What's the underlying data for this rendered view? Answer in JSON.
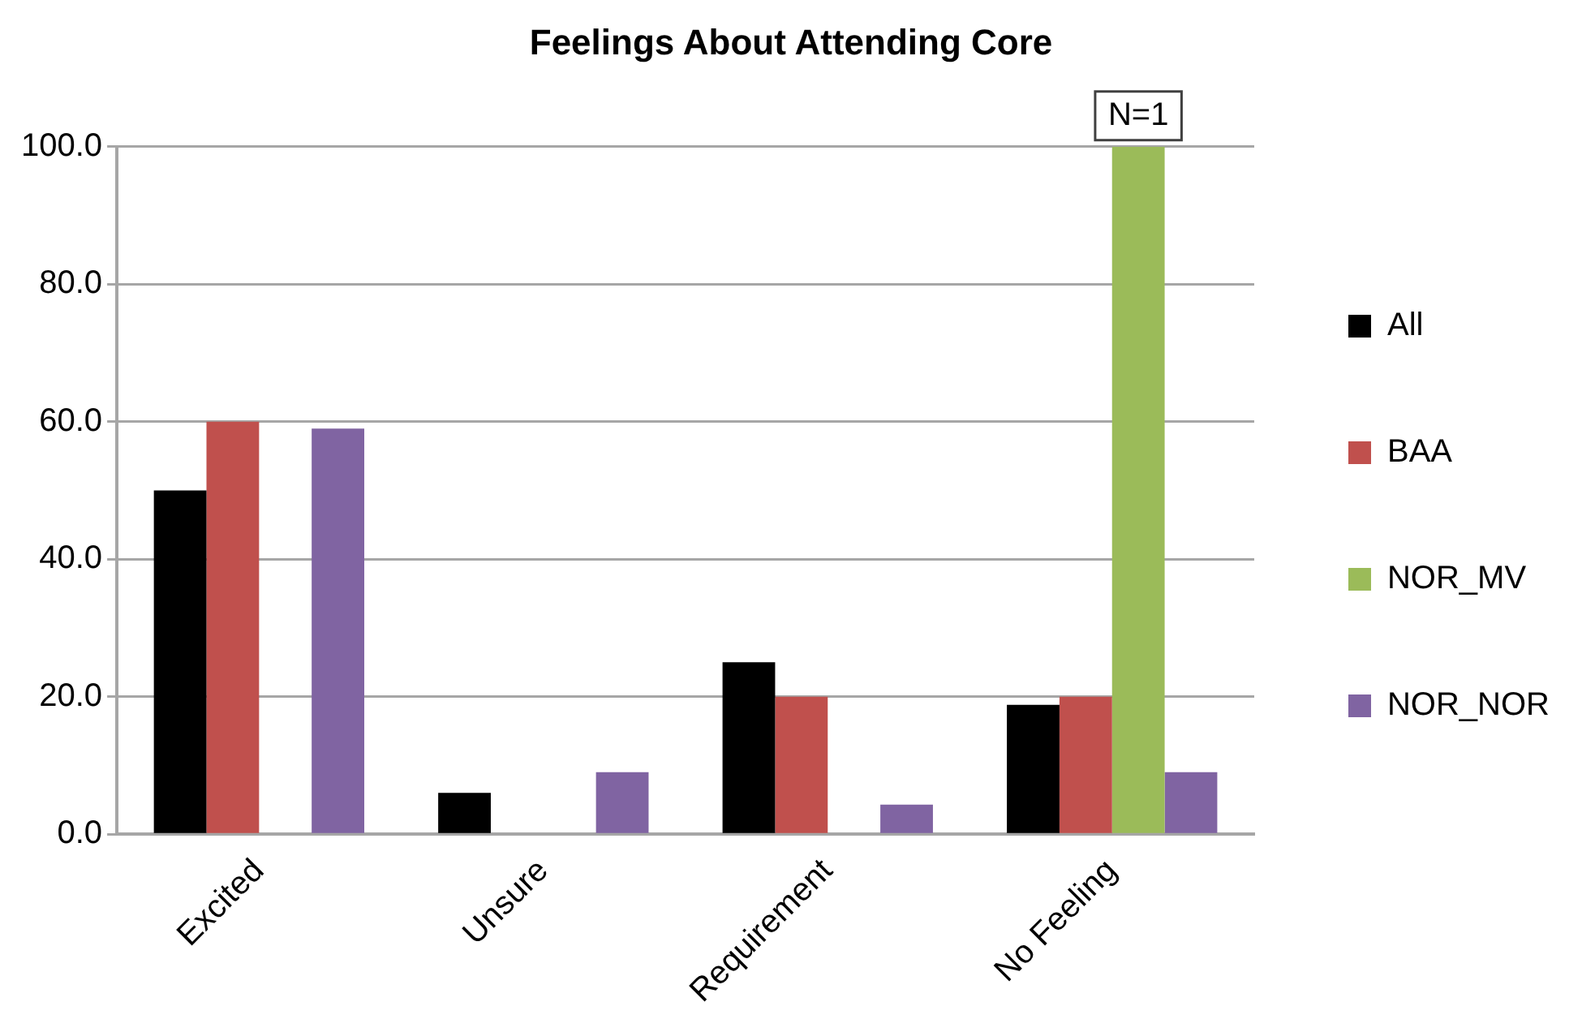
{
  "chart_data": {
    "type": "bar",
    "title": "Feelings About Attending Core",
    "categories": [
      "Excited",
      "Unsure",
      "Requirement",
      "No Feeling"
    ],
    "series": [
      {
        "name": "All",
        "color": "#000000",
        "values": [
          50,
          6,
          25,
          18.8
        ]
      },
      {
        "name": "BAA",
        "color": "#c0504d",
        "values": [
          60,
          0,
          20,
          20
        ]
      },
      {
        "name": "NOR_MV",
        "color": "#9bbb59",
        "values": [
          0,
          0,
          0,
          100
        ]
      },
      {
        "name": "NOR_NOR",
        "color": "#8064a2",
        "values": [
          59,
          9,
          4.3,
          9
        ]
      }
    ],
    "ylim": [
      0,
      100
    ],
    "yticks": [
      {
        "value": 0,
        "label": "0.0"
      },
      {
        "value": 20,
        "label": "20.0"
      },
      {
        "value": 40,
        "label": "40.0"
      },
      {
        "value": 60,
        "label": "60.0"
      },
      {
        "value": 80,
        "label": "80.0"
      },
      {
        "value": 100,
        "label": "100.0"
      }
    ],
    "grid": "y",
    "legend": "right",
    "annotations": [
      {
        "text": "N=1",
        "x": "No Feeling",
        "y": 100
      }
    ]
  }
}
